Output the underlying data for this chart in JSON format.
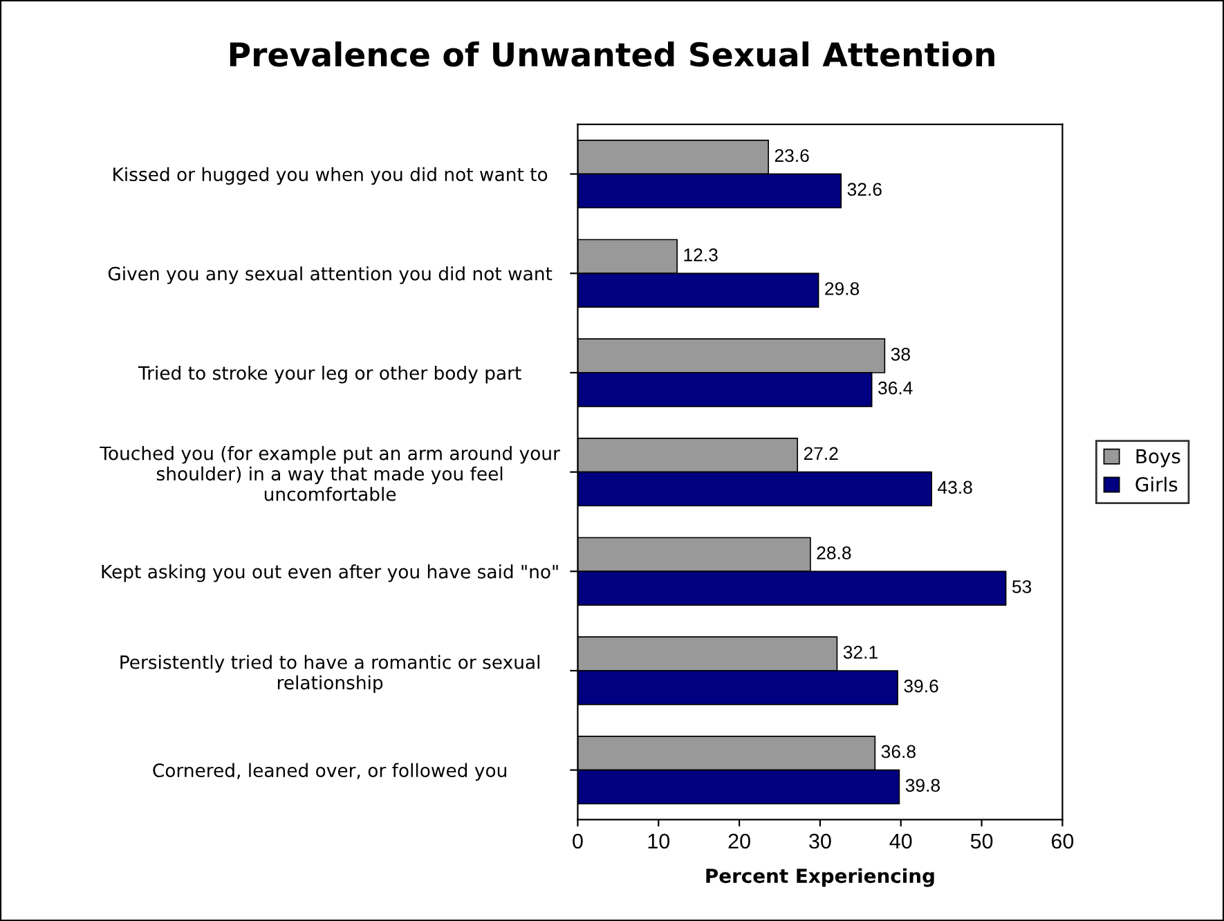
{
  "chart_data": {
    "type": "bar",
    "orientation": "horizontal",
    "title": "Prevalence of Unwanted Sexual Attention",
    "xlabel": "Percent Experiencing",
    "categories": [
      "Kissed or hugged you when you did not want to",
      "Given you any sexual attention you did not want",
      "Tried to stroke your leg or other body part",
      "Touched you (for example put an arm around your\nshoulder) in a way that made you feel\nuncomfortable",
      "Kept asking you out even after you have said \"no\"",
      "Persistently tried to have a romantic or sexual\nrelationship",
      "Cornered, leaned over, or followed you"
    ],
    "series": [
      {
        "name": "Boys",
        "color": "#999999",
        "values": [
          23.6,
          12.3,
          38,
          27.2,
          28.8,
          32.1,
          36.8
        ]
      },
      {
        "name": "Girls",
        "color": "#000080",
        "values": [
          32.6,
          29.8,
          36.4,
          43.8,
          53,
          39.6,
          39.8
        ]
      }
    ],
    "xlim": [
      0,
      60
    ],
    "xticks": [
      0,
      10,
      20,
      30,
      40,
      50,
      60
    ],
    "data_labels": true,
    "grid": false,
    "legend": "right"
  }
}
